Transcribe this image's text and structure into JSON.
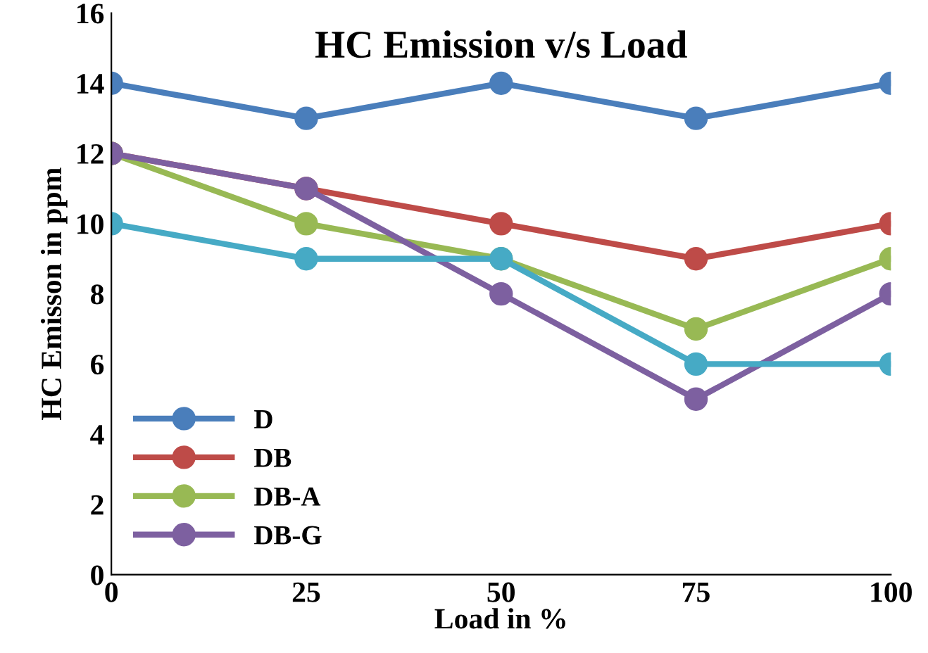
{
  "chart_data": {
    "type": "line",
    "title": "HC Emission v/s Load",
    "xlabel": "Load in %",
    "ylabel": "HC Emisson in ppm",
    "x": [
      0,
      25,
      50,
      75,
      100
    ],
    "xlim": [
      0,
      100
    ],
    "xticks": [
      0,
      25,
      50,
      75,
      100
    ],
    "ylim": [
      0,
      16
    ],
    "yticks": [
      0,
      2,
      4,
      6,
      8,
      10,
      12,
      14,
      16
    ],
    "series": [
      {
        "name": "D",
        "color": "#4a7ebb",
        "values": [
          14,
          13,
          14,
          13,
          14
        ]
      },
      {
        "name": "DB",
        "color": "#be4b48",
        "values": [
          12,
          11,
          10,
          9,
          10
        ]
      },
      {
        "name": "DB-A",
        "color": "#98b954",
        "values": [
          12,
          10,
          9,
          7,
          9
        ]
      },
      {
        "name": "DB-G",
        "color": "#7d60a0",
        "values": [
          12,
          11,
          8,
          5,
          8
        ]
      },
      {
        "color": "#46aac5",
        "values": [
          10,
          9,
          9,
          6,
          6
        ]
      }
    ],
    "marker": "circle",
    "line_style": "solid",
    "grid": false,
    "legend": "bottom left"
  }
}
